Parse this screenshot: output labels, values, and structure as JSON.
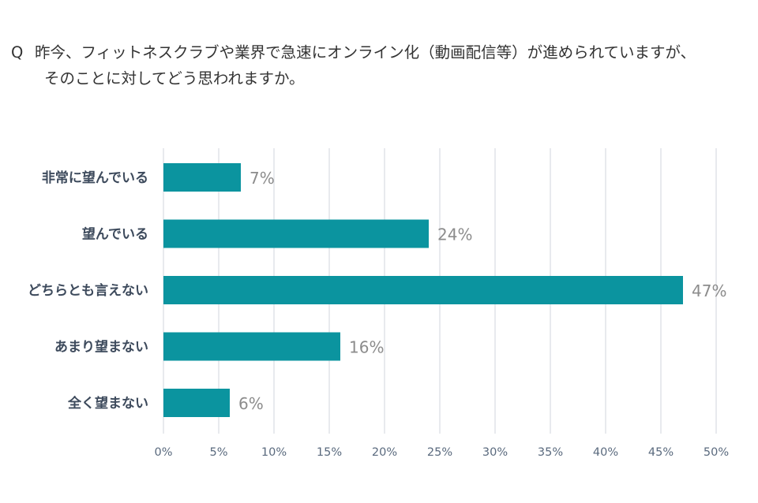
{
  "question": {
    "mark": "Q",
    "line1": "昨今、フィットネスクラブや業界で急速にオンライン化（動画配信等）が進められていますが、",
    "line2": "そのことに対してどう思われますか。"
  },
  "chart_data": {
    "type": "bar",
    "orientation": "horizontal",
    "categories": [
      "非常に望んでいる",
      "望んでいる",
      "どちらとも言えない",
      "あまり望まない",
      "全く望まない"
    ],
    "values": [
      7,
      24,
      47,
      16,
      6
    ],
    "value_labels": [
      "7%",
      "24%",
      "47%",
      "16%",
      "6%"
    ],
    "xlim": [
      0,
      50
    ],
    "xticks": [
      0,
      5,
      10,
      15,
      20,
      25,
      30,
      35,
      40,
      45,
      50
    ],
    "xtick_labels": [
      "0%",
      "5%",
      "10%",
      "15%",
      "20%",
      "25%",
      "30%",
      "35%",
      "40%",
      "45%",
      "50%"
    ],
    "bar_color": "#0b949f",
    "grid": true,
    "legend": "none"
  }
}
